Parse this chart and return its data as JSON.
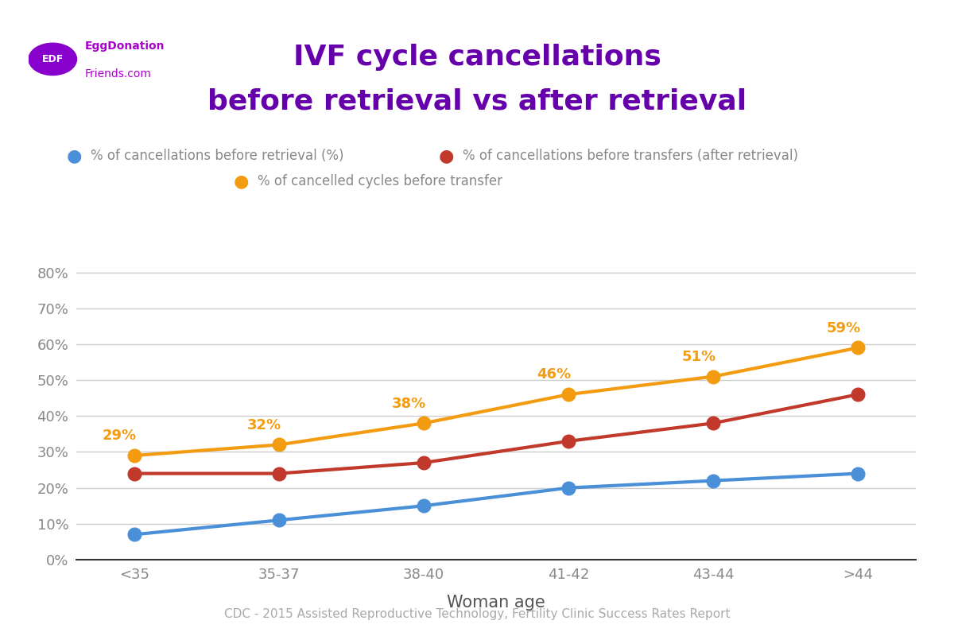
{
  "title_line1": "IVF cycle cancellations",
  "title_line2": "before retrieval vs after retrieval",
  "title_color": "#6600aa",
  "title_fontsize": 26,
  "categories": [
    "<35",
    "35-37",
    "38-40",
    "41-42",
    "43-44",
    ">44"
  ],
  "blue_values": [
    7,
    11,
    15,
    20,
    22,
    24
  ],
  "red_values": [
    24,
    24,
    27,
    33,
    38,
    46
  ],
  "orange_values": [
    29,
    32,
    38,
    46,
    51,
    59
  ],
  "blue_color": "#4a90d9",
  "red_color": "#c0392b",
  "orange_color": "#f39c12",
  "blue_label": "% of cancellations before retrieval (%)",
  "red_label": "% of cancellations before transfers (after retrieval)",
  "orange_label": "% of cancelled cycles before transfer",
  "xlabel": "Woman age",
  "xlabel_fontsize": 15,
  "tick_fontsize": 13,
  "legend_fontsize": 12,
  "ylim_min": 0,
  "ylim_max": 85,
  "yticks": [
    0,
    10,
    20,
    30,
    40,
    50,
    60,
    70,
    80
  ],
  "background_color": "#ffffff",
  "grid_color": "#cccccc",
  "annotation_color_orange": "#f39c12",
  "orange_annotations": [
    "29%",
    "32%",
    "38%",
    "46%",
    "51%",
    "59%"
  ],
  "footer_text": "CDC - 2015 Assisted Reproductive Technology, Fertility Clinic Success Rates Report",
  "footer_color": "#aaaaaa",
  "footer_fontsize": 11,
  "edf_circle_color": "#8800cc",
  "edf_text_color": "#aa00cc",
  "tick_label_color": "#888888",
  "spine_color": "#333333",
  "xlabel_color": "#555555"
}
